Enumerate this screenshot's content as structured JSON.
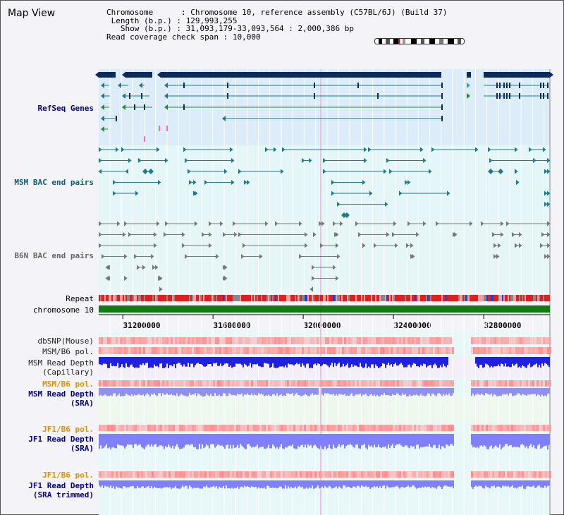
{
  "window": {
    "title": "Map View"
  },
  "header": {
    "chromosome_label": "Chromosome",
    "chromosome_value": "Chromosome 10, reference assembly (C57BL/6J) (Build 37)",
    "length_label": "Length (b.p.)",
    "length_value": "129,993,255",
    "show_label": "Show (b.p.)",
    "show_value": "31,093,179-33,093,564 : 2,000,386 bp",
    "coverage_label": "Read coverage check span",
    "coverage_value": "10,000"
  },
  "tracks": {
    "refseq": "RefSeq Genes",
    "msm_bac": "MSM BAC end pairs",
    "b6n_bac": "B6N BAC end pairs",
    "repeat": "Repeat",
    "chromosome": "chromosome 10",
    "dbsnp": "dbSNP(Mouse)",
    "msm_b6_pol": "MSM/B6 pol.",
    "msm_depth_cap_1": "MSM Read Depth",
    "msm_depth_cap_2": "(Capillary)",
    "msm_b6_pol_2": "MSM/B6 pol.",
    "msm_depth_sra_1": "MSM Read Depth",
    "msm_depth_sra_2": "(SRA)",
    "jf1_pol": "JF1/B6 pol.",
    "jf1_depth_1": "JF1 Read Depth",
    "jf1_depth_2": "(SRA)",
    "jf1_pol_2": "JF1/B6 pol.",
    "jf1_depth_trim_1": "JF1 Read Depth",
    "jf1_depth_trim_2": "(SRA trimmed)"
  },
  "axis": {
    "ticks": [
      "31200000",
      "31600000",
      "32000000",
      "32400000",
      "32800000"
    ],
    "tick_values": [
      31200000,
      31600000,
      32000000,
      32400000,
      32800000
    ],
    "view_start": 31093179,
    "view_end": 33093564
  },
  "colors": {
    "refseq_bg": "#dcecf8",
    "bac_bg": "#e4f6f8",
    "gene_dark": "#0c2a5c",
    "gene_line": "#1f7a8c",
    "gene_green": "#2a8a3a",
    "msm_bac": "#1f7a8c",
    "b6n_bac": "#777777",
    "chromosome": "#117a11",
    "repeat_red": "#dd2020",
    "snp_red": "#ff9090",
    "pol_red": "#ff8a8a",
    "depth_blue": "#2020e0",
    "depth_light": "#8080ff",
    "depth_sra": "#9090ee"
  }
}
